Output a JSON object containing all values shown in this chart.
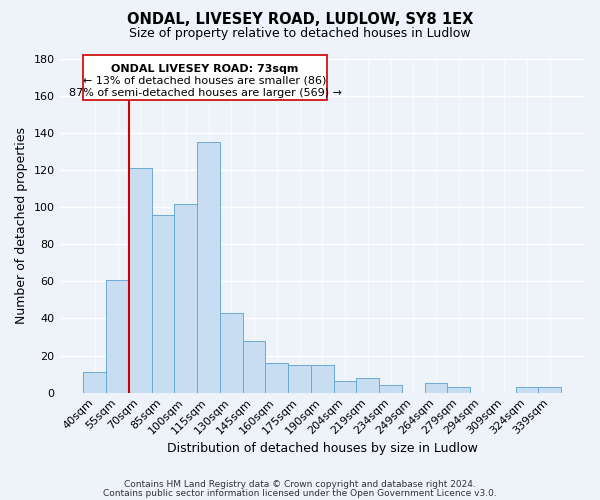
{
  "title": "ONDAL, LIVESEY ROAD, LUDLOW, SY8 1EX",
  "subtitle": "Size of property relative to detached houses in Ludlow",
  "xlabel": "Distribution of detached houses by size in Ludlow",
  "ylabel": "Number of detached properties",
  "bar_color": "#c9ddf2",
  "bar_edge_color": "#6aaad4",
  "categories": [
    "40sqm",
    "55sqm",
    "70sqm",
    "85sqm",
    "100sqm",
    "115sqm",
    "130sqm",
    "145sqm",
    "160sqm",
    "175sqm",
    "190sqm",
    "204sqm",
    "219sqm",
    "234sqm",
    "249sqm",
    "264sqm",
    "279sqm",
    "294sqm",
    "309sqm",
    "324sqm",
    "339sqm"
  ],
  "values": [
    11,
    61,
    121,
    96,
    102,
    135,
    43,
    28,
    16,
    15,
    15,
    6,
    8,
    4,
    0,
    5,
    3,
    0,
    0,
    3,
    3
  ],
  "ylim": [
    0,
    180
  ],
  "yticks": [
    0,
    20,
    40,
    60,
    80,
    100,
    120,
    140,
    160,
    180
  ],
  "marker_bar_index": 2,
  "marker_color": "#cc0000",
  "annotation_title": "ONDAL LIVESEY ROAD: 73sqm",
  "annotation_line1": "← 13% of detached houses are smaller (86)",
  "annotation_line2": "87% of semi-detached houses are larger (569) →",
  "footer1": "Contains HM Land Registry data © Crown copyright and database right 2024.",
  "footer2": "Contains public sector information licensed under the Open Government Licence v3.0.",
  "background_color": "#eef2f9",
  "grid_color": "#ffffff"
}
